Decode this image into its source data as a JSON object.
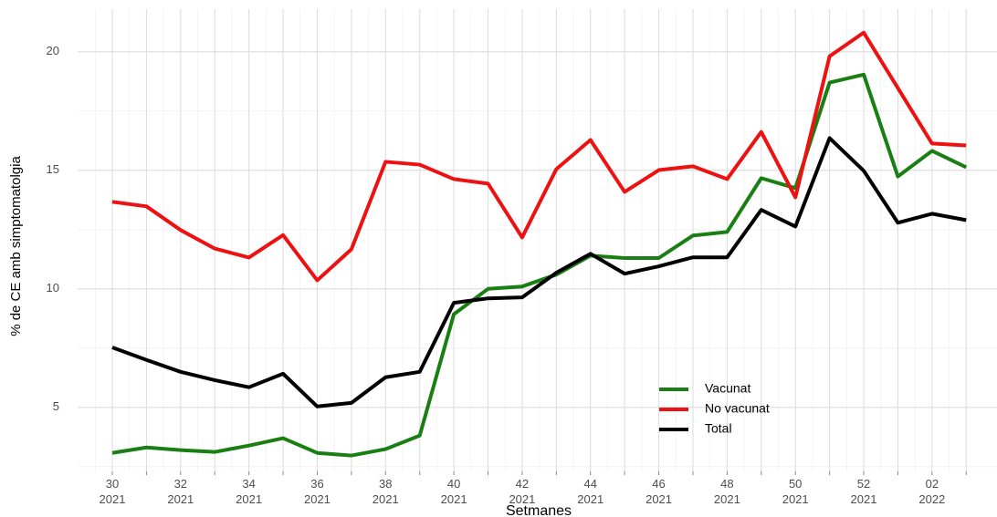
{
  "chart_data": {
    "type": "line",
    "x_label": "Setmanes",
    "y_label": "% de CE amb simptomatolgia",
    "categories": [
      "30\n2021",
      null,
      "32\n2021",
      null,
      "34\n2021",
      null,
      "36\n2021",
      null,
      "38\n2021",
      null,
      "40\n2021",
      null,
      "42\n2021",
      null,
      "44\n2021",
      null,
      "46\n2021",
      null,
      "48\n2021",
      null,
      "50\n2021",
      null,
      "52\n2021",
      null,
      "02\n2022",
      null
    ],
    "series": [
      {
        "name": "Vacunat",
        "color": "#1a7f12",
        "values": [
          3.08,
          3.31,
          3.2,
          3.12,
          3.39,
          3.7,
          3.08,
          2.97,
          3.24,
          3.81,
          8.93,
          10.0,
          10.1,
          10.6,
          11.4,
          11.3,
          11.3,
          12.25,
          12.4,
          14.67,
          14.25,
          18.7,
          19.04,
          14.74,
          15.82,
          15.13
        ]
      },
      {
        "name": "No vacunat",
        "color": "#ee1111",
        "values": [
          13.67,
          13.48,
          12.48,
          11.7,
          11.32,
          12.27,
          10.36,
          11.67,
          15.36,
          15.24,
          14.63,
          14.44,
          12.17,
          15.05,
          16.28,
          14.09,
          15.01,
          15.17,
          14.63,
          16.62,
          13.86,
          19.81,
          20.81,
          18.47,
          16.13,
          16.05
        ]
      },
      {
        "name": "Total",
        "color": "#000000",
        "values": [
          7.53,
          7.0,
          6.5,
          6.15,
          5.85,
          6.42,
          5.04,
          5.19,
          6.27,
          6.5,
          9.41,
          9.6,
          9.64,
          10.68,
          11.48,
          10.64,
          10.95,
          11.33,
          11.33,
          13.33,
          12.63,
          16.36,
          14.98,
          12.79,
          13.17,
          12.9
        ]
      }
    ],
    "ylim": [
      2.3,
      21.8
    ],
    "yticks": [
      5,
      10,
      15,
      20
    ],
    "y_minor_gridlines": [
      2.5,
      7.5,
      12.5,
      17.5
    ],
    "grid": true,
    "legend": "bottom-right"
  }
}
